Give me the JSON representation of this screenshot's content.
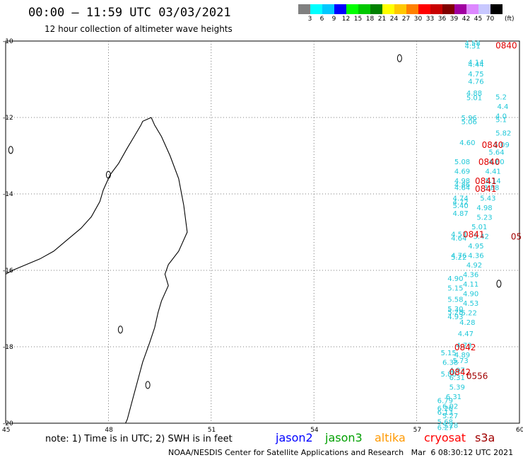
{
  "header": {
    "title": "00:00 – 11:59 UTC 03/03/2021",
    "subtitle": "12 hour collection of altimeter wave heights"
  },
  "colorbar": {
    "unit": "(ft)",
    "labels": [
      "3",
      "6",
      "9",
      "12",
      "15",
      "18",
      "21",
      "24",
      "27",
      "30",
      "33",
      "36",
      "39",
      "42",
      "45",
      "70"
    ],
    "colors": [
      "#808080",
      "#00ffff",
      "#00c8ff",
      "#0000ff",
      "#00ff00",
      "#00c800",
      "#008000",
      "#ffff00",
      "#ffc800",
      "#ff8000",
      "#ff0000",
      "#c80000",
      "#800000",
      "#a000a0",
      "#dd88ff",
      "#c8c8ff",
      "#000000"
    ]
  },
  "axes": {
    "lat_labels": [
      "-10",
      "-12",
      "-14",
      "-16",
      "-18",
      "-20"
    ],
    "lon_labels": [
      "45",
      "48",
      "51",
      "54",
      "57",
      "60"
    ],
    "lat_range": [
      -20,
      -10
    ],
    "lon_range": [
      45,
      60
    ],
    "gridlines": true
  },
  "observations": {
    "cyan_color": "#20c8d8",
    "red_color": "#e00000",
    "darkred_color": "#a00000",
    "swh_ft": [
      {
        "lon": 58.4,
        "lat": -10.05,
        "t": "4.58"
      },
      {
        "lon": 58.4,
        "lat": -10.12,
        "t": "4.51"
      },
      {
        "lon": 58.5,
        "lat": -10.55,
        "t": "4.14"
      },
      {
        "lon": 58.5,
        "lat": -10.6,
        "t": "4.44"
      },
      {
        "lon": 58.5,
        "lat": -10.85,
        "t": "4.75"
      },
      {
        "lon": 58.5,
        "lat": -11.05,
        "t": "4.76"
      },
      {
        "lon": 58.45,
        "lat": -11.35,
        "t": "4.88"
      },
      {
        "lon": 58.45,
        "lat": -11.47,
        "t": "5.01"
      },
      {
        "lon": 59.3,
        "lat": -11.45,
        "t": "5.2"
      },
      {
        "lon": 59.35,
        "lat": -11.7,
        "t": "4.4"
      },
      {
        "lon": 59.3,
        "lat": -11.95,
        "t": "4.0"
      },
      {
        "lon": 59.3,
        "lat": -12.05,
        "t": "5.1"
      },
      {
        "lon": 58.3,
        "lat": -12.0,
        "t": "5.96"
      },
      {
        "lon": 58.3,
        "lat": -12.1,
        "t": "5.06"
      },
      {
        "lon": 59.3,
        "lat": -12.4,
        "t": "5.82"
      },
      {
        "lon": 59.25,
        "lat": -12.7,
        "t": "5.09"
      },
      {
        "lon": 58.25,
        "lat": -12.65,
        "t": "4.60"
      },
      {
        "lon": 59.1,
        "lat": -12.9,
        "t": "5.64"
      },
      {
        "lon": 59.1,
        "lat": -13.15,
        "t": "4.60"
      },
      {
        "lon": 58.1,
        "lat": -13.15,
        "t": "5.08"
      },
      {
        "lon": 59.0,
        "lat": -13.4,
        "t": "4.41"
      },
      {
        "lon": 58.1,
        "lat": -13.4,
        "t": "4.69"
      },
      {
        "lon": 59.0,
        "lat": -13.65,
        "t": "5.14"
      },
      {
        "lon": 58.1,
        "lat": -13.65,
        "t": "4.98"
      },
      {
        "lon": 58.1,
        "lat": -13.75,
        "t": "4.86"
      },
      {
        "lon": 58.1,
        "lat": -13.82,
        "t": "4.64"
      },
      {
        "lon": 58.95,
        "lat": -13.82,
        "t": "3.88"
      },
      {
        "lon": 58.05,
        "lat": -14.1,
        "t": "4.74"
      },
      {
        "lon": 58.05,
        "lat": -14.2,
        "t": "4.72"
      },
      {
        "lon": 58.85,
        "lat": -14.1,
        "t": "5.43"
      },
      {
        "lon": 58.05,
        "lat": -14.3,
        "t": "5.40"
      },
      {
        "lon": 58.75,
        "lat": -14.35,
        "t": "4.98"
      },
      {
        "lon": 58.05,
        "lat": -14.5,
        "t": "4.87"
      },
      {
        "lon": 58.75,
        "lat": -14.6,
        "t": "5.23"
      },
      {
        "lon": 58.6,
        "lat": -14.85,
        "t": "5.01"
      },
      {
        "lon": 58.0,
        "lat": -15.05,
        "t": "4.53"
      },
      {
        "lon": 58.0,
        "lat": -15.15,
        "t": "4.64"
      },
      {
        "lon": 58.65,
        "lat": -15.1,
        "t": "5.42"
      },
      {
        "lon": 58.5,
        "lat": -15.35,
        "t": "4.95"
      },
      {
        "lon": 58.5,
        "lat": -15.6,
        "t": "4.36"
      },
      {
        "lon": 58.0,
        "lat": -15.65,
        "t": "5.22"
      },
      {
        "lon": 58.0,
        "lat": -15.6,
        "t": "4.76"
      },
      {
        "lon": 58.45,
        "lat": -15.85,
        "t": "4.92"
      },
      {
        "lon": 58.35,
        "lat": -16.1,
        "t": "4.36"
      },
      {
        "lon": 57.9,
        "lat": -16.2,
        "t": "4.90"
      },
      {
        "lon": 58.35,
        "lat": -16.35,
        "t": "4.11"
      },
      {
        "lon": 57.9,
        "lat": -16.45,
        "t": "5.15"
      },
      {
        "lon": 58.35,
        "lat": -16.6,
        "t": "4.90"
      },
      {
        "lon": 57.9,
        "lat": -16.75,
        "t": "5.58"
      },
      {
        "lon": 58.35,
        "lat": -16.85,
        "t": "4.53"
      },
      {
        "lon": 57.9,
        "lat": -17.0,
        "t": "5.30"
      },
      {
        "lon": 57.9,
        "lat": -17.08,
        "t": "5.28"
      },
      {
        "lon": 58.3,
        "lat": -17.1,
        "t": "5.22"
      },
      {
        "lon": 57.9,
        "lat": -17.2,
        "t": "4.93"
      },
      {
        "lon": 58.25,
        "lat": -17.35,
        "t": "4.28"
      },
      {
        "lon": 58.2,
        "lat": -17.65,
        "t": "4.47"
      },
      {
        "lon": 58.15,
        "lat": -17.95,
        "t": "4.73"
      },
      {
        "lon": 57.7,
        "lat": -18.15,
        "t": "5.15"
      },
      {
        "lon": 58.1,
        "lat": -18.2,
        "t": "4.89"
      },
      {
        "lon": 58.05,
        "lat": -18.35,
        "t": "5.73"
      },
      {
        "lon": 57.75,
        "lat": -18.4,
        "t": "6.38"
      },
      {
        "lon": 57.95,
        "lat": -18.6,
        "t": "4.97"
      },
      {
        "lon": 57.7,
        "lat": -18.7,
        "t": "5.86"
      },
      {
        "lon": 57.95,
        "lat": -18.8,
        "t": "6.31"
      },
      {
        "lon": 57.95,
        "lat": -19.05,
        "t": "5.39"
      },
      {
        "lon": 57.85,
        "lat": -19.3,
        "t": "6.31"
      },
      {
        "lon": 57.6,
        "lat": -19.4,
        "t": "6.79"
      },
      {
        "lon": 57.75,
        "lat": -19.55,
        "t": "6.02"
      },
      {
        "lon": 57.6,
        "lat": -19.6,
        "t": "6.26"
      },
      {
        "lon": 57.6,
        "lat": -19.7,
        "t": "6.13"
      },
      {
        "lon": 57.75,
        "lat": -19.8,
        "t": "5.27"
      },
      {
        "lon": 57.6,
        "lat": -19.95,
        "t": "5.68"
      },
      {
        "lon": 57.75,
        "lat": -20.05,
        "t": "5.28"
      },
      {
        "lon": 57.6,
        "lat": -20.1,
        "t": "6.27"
      }
    ],
    "times_utc": [
      {
        "lon": 59.3,
        "lat": -10.1,
        "t": "0840",
        "c": "red"
      },
      {
        "lon": 58.9,
        "lat": -12.7,
        "t": "0840",
        "c": "red"
      },
      {
        "lon": 58.8,
        "lat": -13.15,
        "t": "0840",
        "c": "red"
      },
      {
        "lon": 58.7,
        "lat": -13.65,
        "t": "0841",
        "c": "red"
      },
      {
        "lon": 58.7,
        "lat": -13.85,
        "t": "0841",
        "c": "red"
      },
      {
        "lon": 58.35,
        "lat": -15.05,
        "t": "0841",
        "c": "red"
      },
      {
        "lon": 59.75,
        "lat": -15.1,
        "t": "05",
        "c": "darkred"
      },
      {
        "lon": 58.1,
        "lat": -18.0,
        "t": "0842",
        "c": "red"
      },
      {
        "lon": 57.95,
        "lat": -18.65,
        "t": "0842",
        "c": "red"
      },
      {
        "lon": 58.45,
        "lat": -18.75,
        "t": "0556",
        "c": "darkred"
      }
    ]
  },
  "footer": {
    "note": "note: 1) Time is in UTC; 2) SWH is in feet",
    "satellites": [
      {
        "name": "jason2",
        "color": "#0000ff"
      },
      {
        "name": "jason3",
        "color": "#00a000"
      },
      {
        "name": "altika",
        "color": "#ff9900"
      },
      {
        "name": "cryosat",
        "color": "#ff0000"
      },
      {
        "name": "s3a",
        "color": "#a00000"
      }
    ],
    "credit": "NOAA/NESDIS Center for Satellite Applications and Research   Mar  6 08:30:12 UTC 2021"
  }
}
